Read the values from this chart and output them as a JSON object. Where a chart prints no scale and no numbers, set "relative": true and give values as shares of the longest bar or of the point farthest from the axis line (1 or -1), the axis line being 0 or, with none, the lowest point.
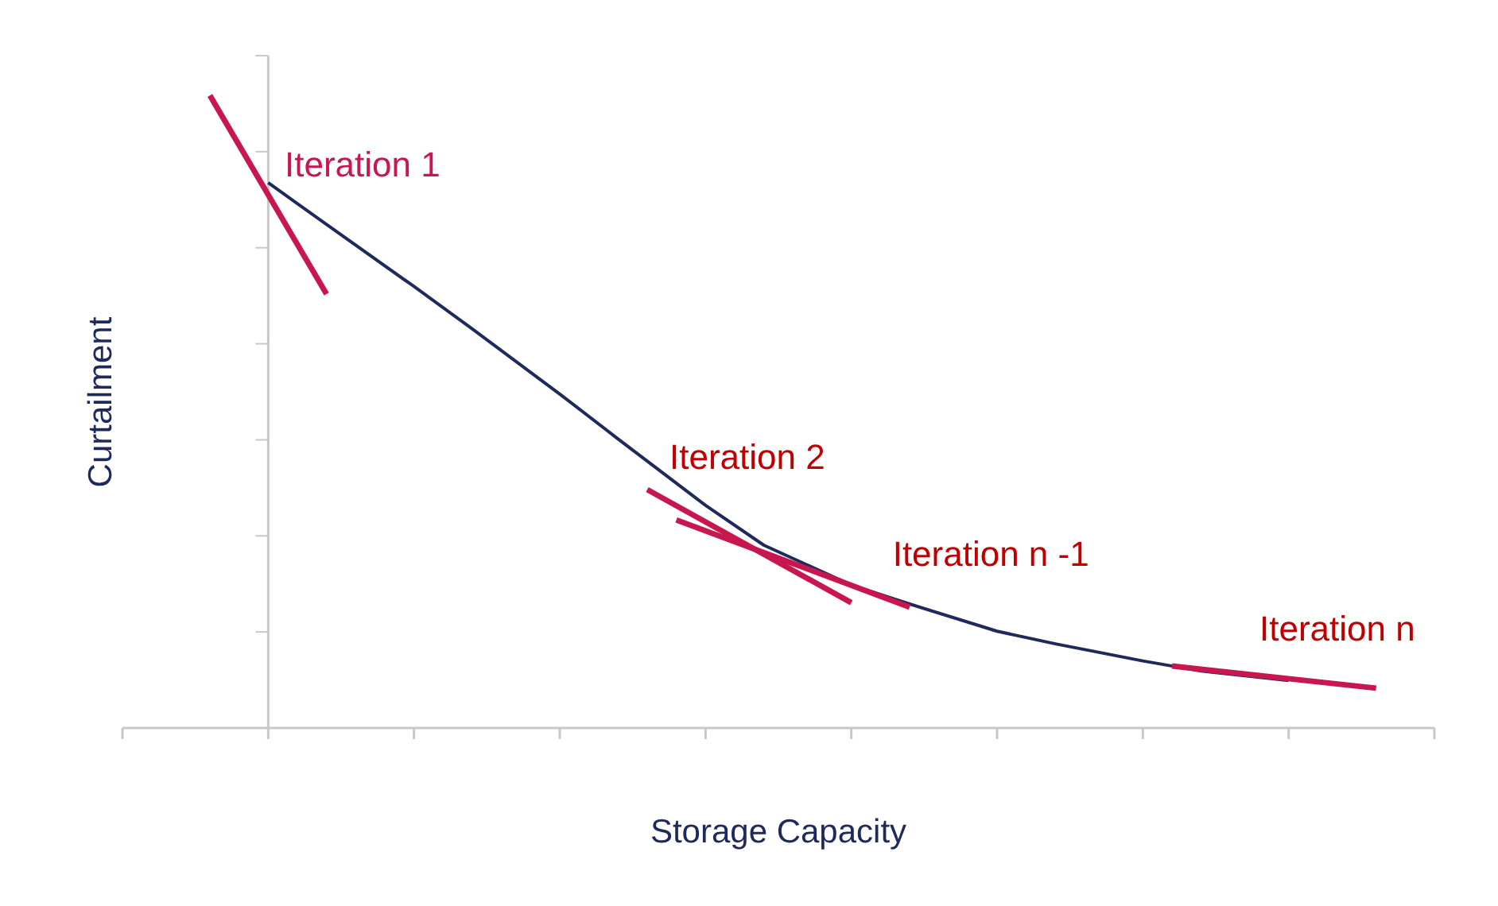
{
  "chart_data": {
    "type": "line",
    "relative": true,
    "xlabel": "Storage Capacity",
    "ylabel": "Curtailment",
    "marker": "none",
    "line_style": "solid",
    "categories": [
      null,
      null,
      null,
      null,
      null,
      null,
      null,
      null,
      null,
      null,
      null,
      null,
      null,
      null,
      null,
      null,
      null,
      null,
      null,
      null,
      null,
      null,
      null,
      null,
      null,
      null,
      null,
      null,
      null,
      null,
      null,
      null,
      null,
      null,
      null,
      null,
      null,
      null,
      null,
      null,
      null,
      null,
      null,
      null,
      null,
      null
    ],
    "series": [
      {
        "color": "#1f2a5c",
        "values": [
          null,
          null,
          null,
          null,
          null,
          0.862,
          null,
          0.796,
          null,
          null,
          0.698,
          null,
          0.631,
          null,
          null,
          0.528,
          null,
          0.457,
          null,
          null,
          0.352,
          null,
          0.289,
          null,
          null,
          0.226,
          null,
          0.196,
          null,
          null,
          0.153,
          null,
          0.133,
          null,
          null,
          0.106,
          null,
          0.09,
          null,
          null,
          0.075,
          null,
          null,
          null,
          null,
          null
        ]
      },
      {
        "name": "Iteration 1",
        "color": "#c8174f",
        "values": [
          null,
          null,
          null,
          1.0,
          null,
          null,
          null,
          0.686,
          null,
          null,
          null,
          null,
          null,
          null,
          null,
          null,
          null,
          null,
          null,
          null,
          null,
          null,
          null,
          null,
          null,
          null,
          null,
          null,
          null,
          null,
          null,
          null,
          null,
          null,
          null,
          null,
          null,
          null,
          null,
          null,
          null,
          null,
          null,
          null,
          null,
          null
        ]
      },
      {
        "name": "Iteration 2",
        "color": "#c8174f",
        "values": [
          null,
          null,
          null,
          null,
          null,
          null,
          null,
          null,
          null,
          null,
          null,
          null,
          null,
          null,
          null,
          null,
          null,
          null,
          0.377,
          null,
          null,
          null,
          null,
          null,
          null,
          0.198,
          null,
          null,
          null,
          null,
          null,
          null,
          null,
          null,
          null,
          null,
          null,
          null,
          null,
          null,
          null,
          null,
          null,
          null,
          null,
          null
        ]
      },
      {
        "name": "Iteration n -1",
        "color": "#c8174f",
        "values": [
          null,
          null,
          null,
          null,
          null,
          null,
          null,
          null,
          null,
          null,
          null,
          null,
          null,
          null,
          null,
          null,
          null,
          null,
          null,
          0.329,
          null,
          null,
          null,
          null,
          null,
          null,
          null,
          0.191,
          null,
          null,
          null,
          null,
          null,
          null,
          null,
          null,
          null,
          null,
          null,
          null,
          null,
          null,
          null,
          null,
          null,
          null
        ]
      },
      {
        "name": "Iteration n",
        "color": "#c8174f",
        "values": [
          null,
          null,
          null,
          null,
          null,
          null,
          null,
          null,
          null,
          null,
          null,
          null,
          null,
          null,
          null,
          null,
          null,
          null,
          null,
          null,
          null,
          null,
          null,
          null,
          null,
          null,
          null,
          null,
          null,
          null,
          null,
          null,
          null,
          null,
          null,
          null,
          0.098,
          null,
          null,
          null,
          null,
          null,
          null,
          0.063,
          null,
          null
        ]
      }
    ]
  }
}
